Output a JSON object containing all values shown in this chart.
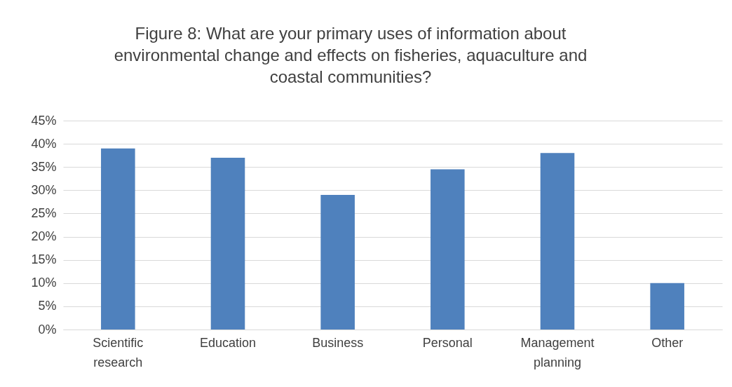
{
  "chart_data": {
    "type": "bar",
    "title": "Figure 8: What are your primary uses of information about\nenvironmental change and effects on fisheries, aquaculture and\ncoastal communities?",
    "categories": [
      "Scientific research",
      "Education",
      "Business",
      "Personal",
      "Management planning",
      "Other"
    ],
    "values": [
      39,
      37,
      29,
      34.5,
      38,
      10
    ],
    "color": "#4f81bd",
    "ylim": [
      0,
      45
    ],
    "yticks": [
      {
        "value": 0,
        "label": "0%"
      },
      {
        "value": 5,
        "label": "5%"
      },
      {
        "value": 10,
        "label": "10%"
      },
      {
        "value": 15,
        "label": "15%"
      },
      {
        "value": 20,
        "label": "20%"
      },
      {
        "value": 25,
        "label": "25%"
      },
      {
        "value": 30,
        "label": "30%"
      },
      {
        "value": 35,
        "label": "35%"
      },
      {
        "value": 40,
        "label": "40%"
      },
      {
        "value": 45,
        "label": "45%"
      }
    ],
    "grid": "y"
  }
}
